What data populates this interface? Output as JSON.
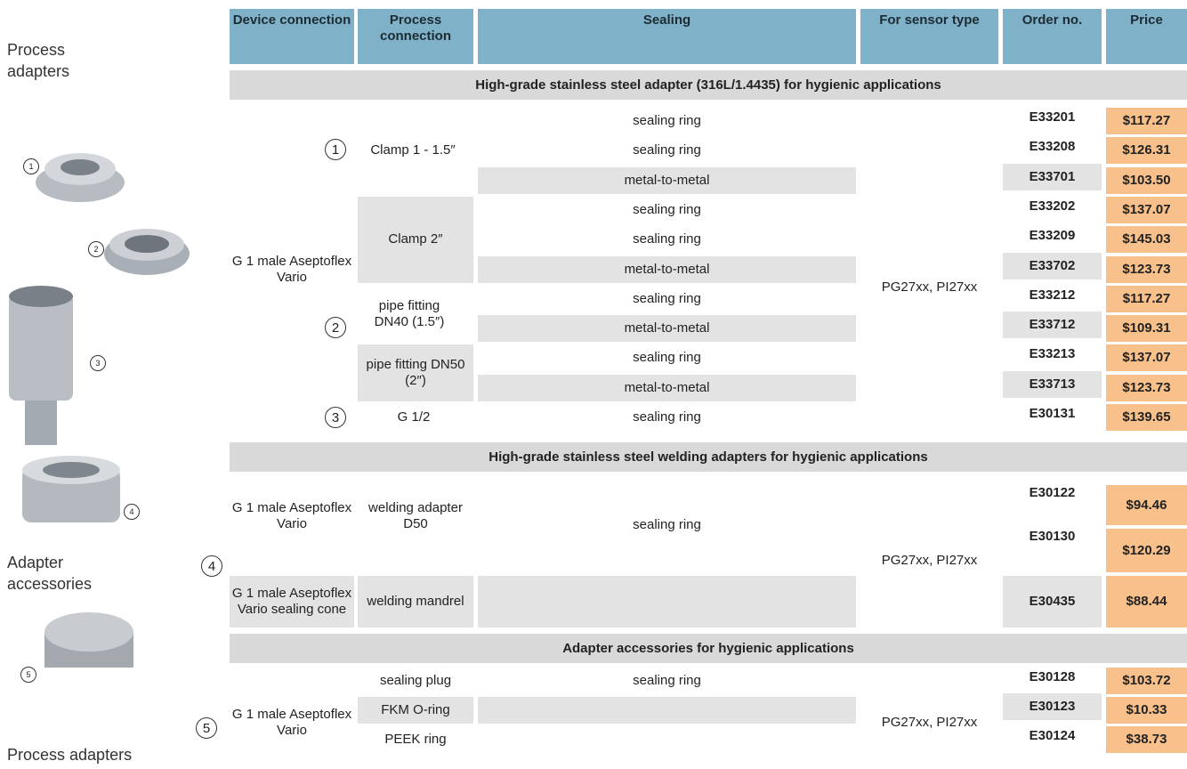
{
  "sidebar": {
    "labels": [
      "Process adapters",
      "Adapter accessories",
      "Process adapters"
    ]
  },
  "table": {
    "headers": [
      "Device connection",
      "Process connection",
      "Sealing",
      "For sensor type",
      "Order no.",
      "Price"
    ],
    "sections": [
      {
        "title": "High-grade stainless steel adapter (316L/1.4435) for hygienic applications",
        "device": "G 1 male Aseptoflex Vario",
        "sensor": "PG27xx, PI27xx",
        "process": [
          {
            "marker": "1",
            "text": "Clamp 1 - 1.5″"
          },
          {
            "text": "Clamp 2″"
          },
          {
            "marker": "2",
            "text": "pipe fitting DN40 (1.5″)"
          },
          {
            "text": "pipe fitting DN50 (2″)"
          },
          {
            "marker": "3",
            "text": "G 1/2"
          }
        ],
        "rows": [
          {
            "sealing": "sealing ring",
            "order": "E33201",
            "price": "$117.27"
          },
          {
            "sealing": "sealing ring",
            "order": "E33208",
            "price": "$126.31"
          },
          {
            "sealing": "metal-to-metal",
            "order": "E33701",
            "price": "$103.50"
          },
          {
            "sealing": "sealing ring",
            "order": "E33202",
            "price": "$137.07"
          },
          {
            "sealing": "sealing ring",
            "order": "E33209",
            "price": "$145.03"
          },
          {
            "sealing": "metal-to-metal",
            "order": "E33702",
            "price": "$123.73"
          },
          {
            "sealing": "sealing ring",
            "order": "E33212",
            "price": "$117.27"
          },
          {
            "sealing": "metal-to-metal",
            "order": "E33712",
            "price": "$109.31"
          },
          {
            "sealing": "sealing ring",
            "order": "E33213",
            "price": "$137.07"
          },
          {
            "sealing": "metal-to-metal",
            "order": "E33713",
            "price": "$123.73"
          },
          {
            "sealing": "sealing ring",
            "order": "E30131",
            "price": "$139.65"
          }
        ]
      },
      {
        "title": "High-grade stainless steel welding adapters for hygienic applications",
        "sensor": "PG27xx, PI27xx",
        "marker": "4",
        "groups": [
          {
            "device": "G 1 male Aseptoflex Vario",
            "process": "welding adapter D50",
            "sealing": "sealing ring",
            "rows": [
              {
                "order": "E30122",
                "price": "$94.46"
              },
              {
                "order": "E30130",
                "price": "$120.29"
              }
            ]
          },
          {
            "device": "G 1 male Aseptoflex Vario sealing cone",
            "process": "welding mandrel",
            "rows": [
              {
                "order": "E30435",
                "price": "$88.44"
              }
            ]
          }
        ]
      },
      {
        "title": "Adapter accessories for hygienic applications",
        "device": "G 1 male Aseptoflex Vario",
        "sensor": "PG27xx, PI27xx",
        "marker": "5",
        "rows": [
          {
            "process": "sealing plug",
            "sealing": "sealing ring",
            "order": "E30128",
            "price": "$103.72"
          },
          {
            "process": "FKM O-ring",
            "order": "E30123",
            "price": "$10.33"
          },
          {
            "process": "PEEK ring",
            "order": "E30124",
            "price": "$38.73"
          }
        ]
      }
    ]
  }
}
